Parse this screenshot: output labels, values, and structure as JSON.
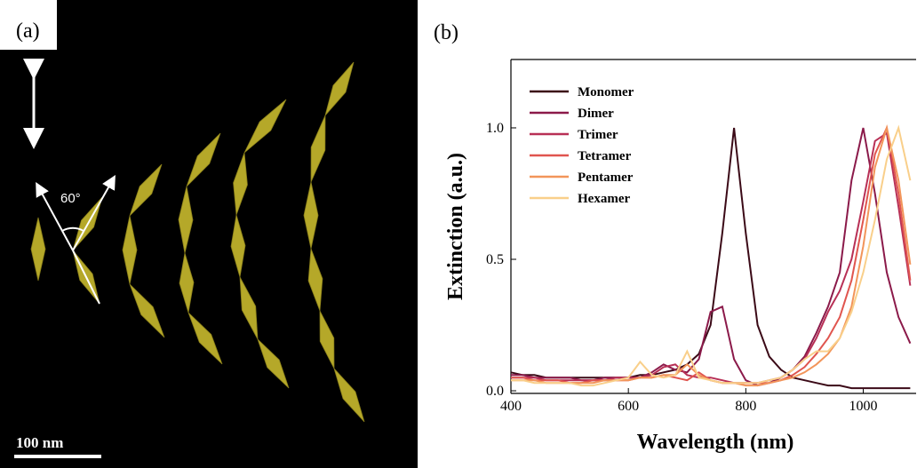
{
  "panel_a": {
    "label": "(a)",
    "angle_label": "60°",
    "scale_label": "100 nm"
  },
  "chart_data": {
    "type": "line",
    "panel_label": "(b)",
    "x_label": "Wavelength (nm)",
    "y_label": "Extinction (a.u.)",
    "xlim": [
      400,
      1090
    ],
    "ylim": [
      -0.01,
      1.26
    ],
    "xticks": [
      400,
      600,
      800,
      1000
    ],
    "yticks": [
      {
        "value": 0,
        "label": "0.0"
      },
      0.5,
      {
        "value": 1,
        "label": "1.0"
      }
    ],
    "legend": "top-left",
    "x": [
      400,
      420,
      440,
      460,
      480,
      500,
      520,
      540,
      560,
      580,
      600,
      620,
      640,
      660,
      680,
      700,
      720,
      740,
      760,
      780,
      800,
      820,
      840,
      860,
      880,
      900,
      920,
      940,
      960,
      980,
      1000,
      1020,
      1040,
      1060,
      1080
    ],
    "series": [
      {
        "name": "Monomer",
        "color": "#3b0a17",
        "values": [
          0.07,
          0.06,
          0.06,
          0.05,
          0.05,
          0.05,
          0.05,
          0.05,
          0.05,
          0.05,
          0.05,
          0.06,
          0.06,
          0.07,
          0.08,
          0.1,
          0.14,
          0.25,
          0.6,
          1.0,
          0.6,
          0.25,
          0.13,
          0.08,
          0.05,
          0.04,
          0.03,
          0.02,
          0.02,
          0.01,
          0.01,
          0.01,
          0.01,
          0.01,
          0.01
        ]
      },
      {
        "name": "Dimer",
        "color": "#8b1a4a",
        "values": [
          0.06,
          0.06,
          0.05,
          0.05,
          0.05,
          0.05,
          0.04,
          0.04,
          0.05,
          0.05,
          0.05,
          0.05,
          0.07,
          0.1,
          0.08,
          0.07,
          0.12,
          0.3,
          0.32,
          0.12,
          0.04,
          0.02,
          0.03,
          0.05,
          0.08,
          0.13,
          0.22,
          0.32,
          0.45,
          0.8,
          1.0,
          0.75,
          0.45,
          0.28,
          0.18
        ]
      },
      {
        "name": "Trimer",
        "color": "#b83056",
        "values": [
          0.05,
          0.05,
          0.05,
          0.04,
          0.04,
          0.04,
          0.04,
          0.04,
          0.04,
          0.05,
          0.05,
          0.05,
          0.06,
          0.09,
          0.1,
          0.06,
          0.05,
          0.05,
          0.04,
          0.03,
          0.03,
          0.03,
          0.04,
          0.05,
          0.08,
          0.12,
          0.2,
          0.3,
          0.38,
          0.5,
          0.72,
          0.95,
          0.98,
          0.7,
          0.4
        ]
      },
      {
        "name": "Tetramer",
        "color": "#e0554f",
        "values": [
          0.05,
          0.05,
          0.04,
          0.04,
          0.04,
          0.03,
          0.03,
          0.04,
          0.04,
          0.04,
          0.04,
          0.05,
          0.05,
          0.06,
          0.05,
          0.04,
          0.07,
          0.04,
          0.03,
          0.03,
          0.03,
          0.03,
          0.03,
          0.04,
          0.06,
          0.09,
          0.14,
          0.2,
          0.28,
          0.42,
          0.65,
          0.9,
          1.0,
          0.75,
          0.42
        ]
      },
      {
        "name": "Pentamer",
        "color": "#f2955a",
        "values": [
          0.04,
          0.04,
          0.04,
          0.03,
          0.03,
          0.03,
          0.03,
          0.03,
          0.04,
          0.04,
          0.04,
          0.05,
          0.05,
          0.06,
          0.06,
          0.1,
          0.06,
          0.04,
          0.03,
          0.03,
          0.02,
          0.02,
          0.03,
          0.04,
          0.05,
          0.07,
          0.1,
          0.14,
          0.2,
          0.32,
          0.55,
          0.85,
          1.0,
          0.8,
          0.48
        ]
      },
      {
        "name": "Hexamer",
        "color": "#f9cf8a",
        "values": [
          0.04,
          0.04,
          0.03,
          0.03,
          0.03,
          0.03,
          0.02,
          0.02,
          0.03,
          0.04,
          0.05,
          0.11,
          0.06,
          0.05,
          0.06,
          0.15,
          0.05,
          0.04,
          0.03,
          0.03,
          0.03,
          0.03,
          0.04,
          0.05,
          0.08,
          0.12,
          0.15,
          0.15,
          0.2,
          0.3,
          0.45,
          0.65,
          0.88,
          1.0,
          0.8
        ]
      }
    ]
  }
}
